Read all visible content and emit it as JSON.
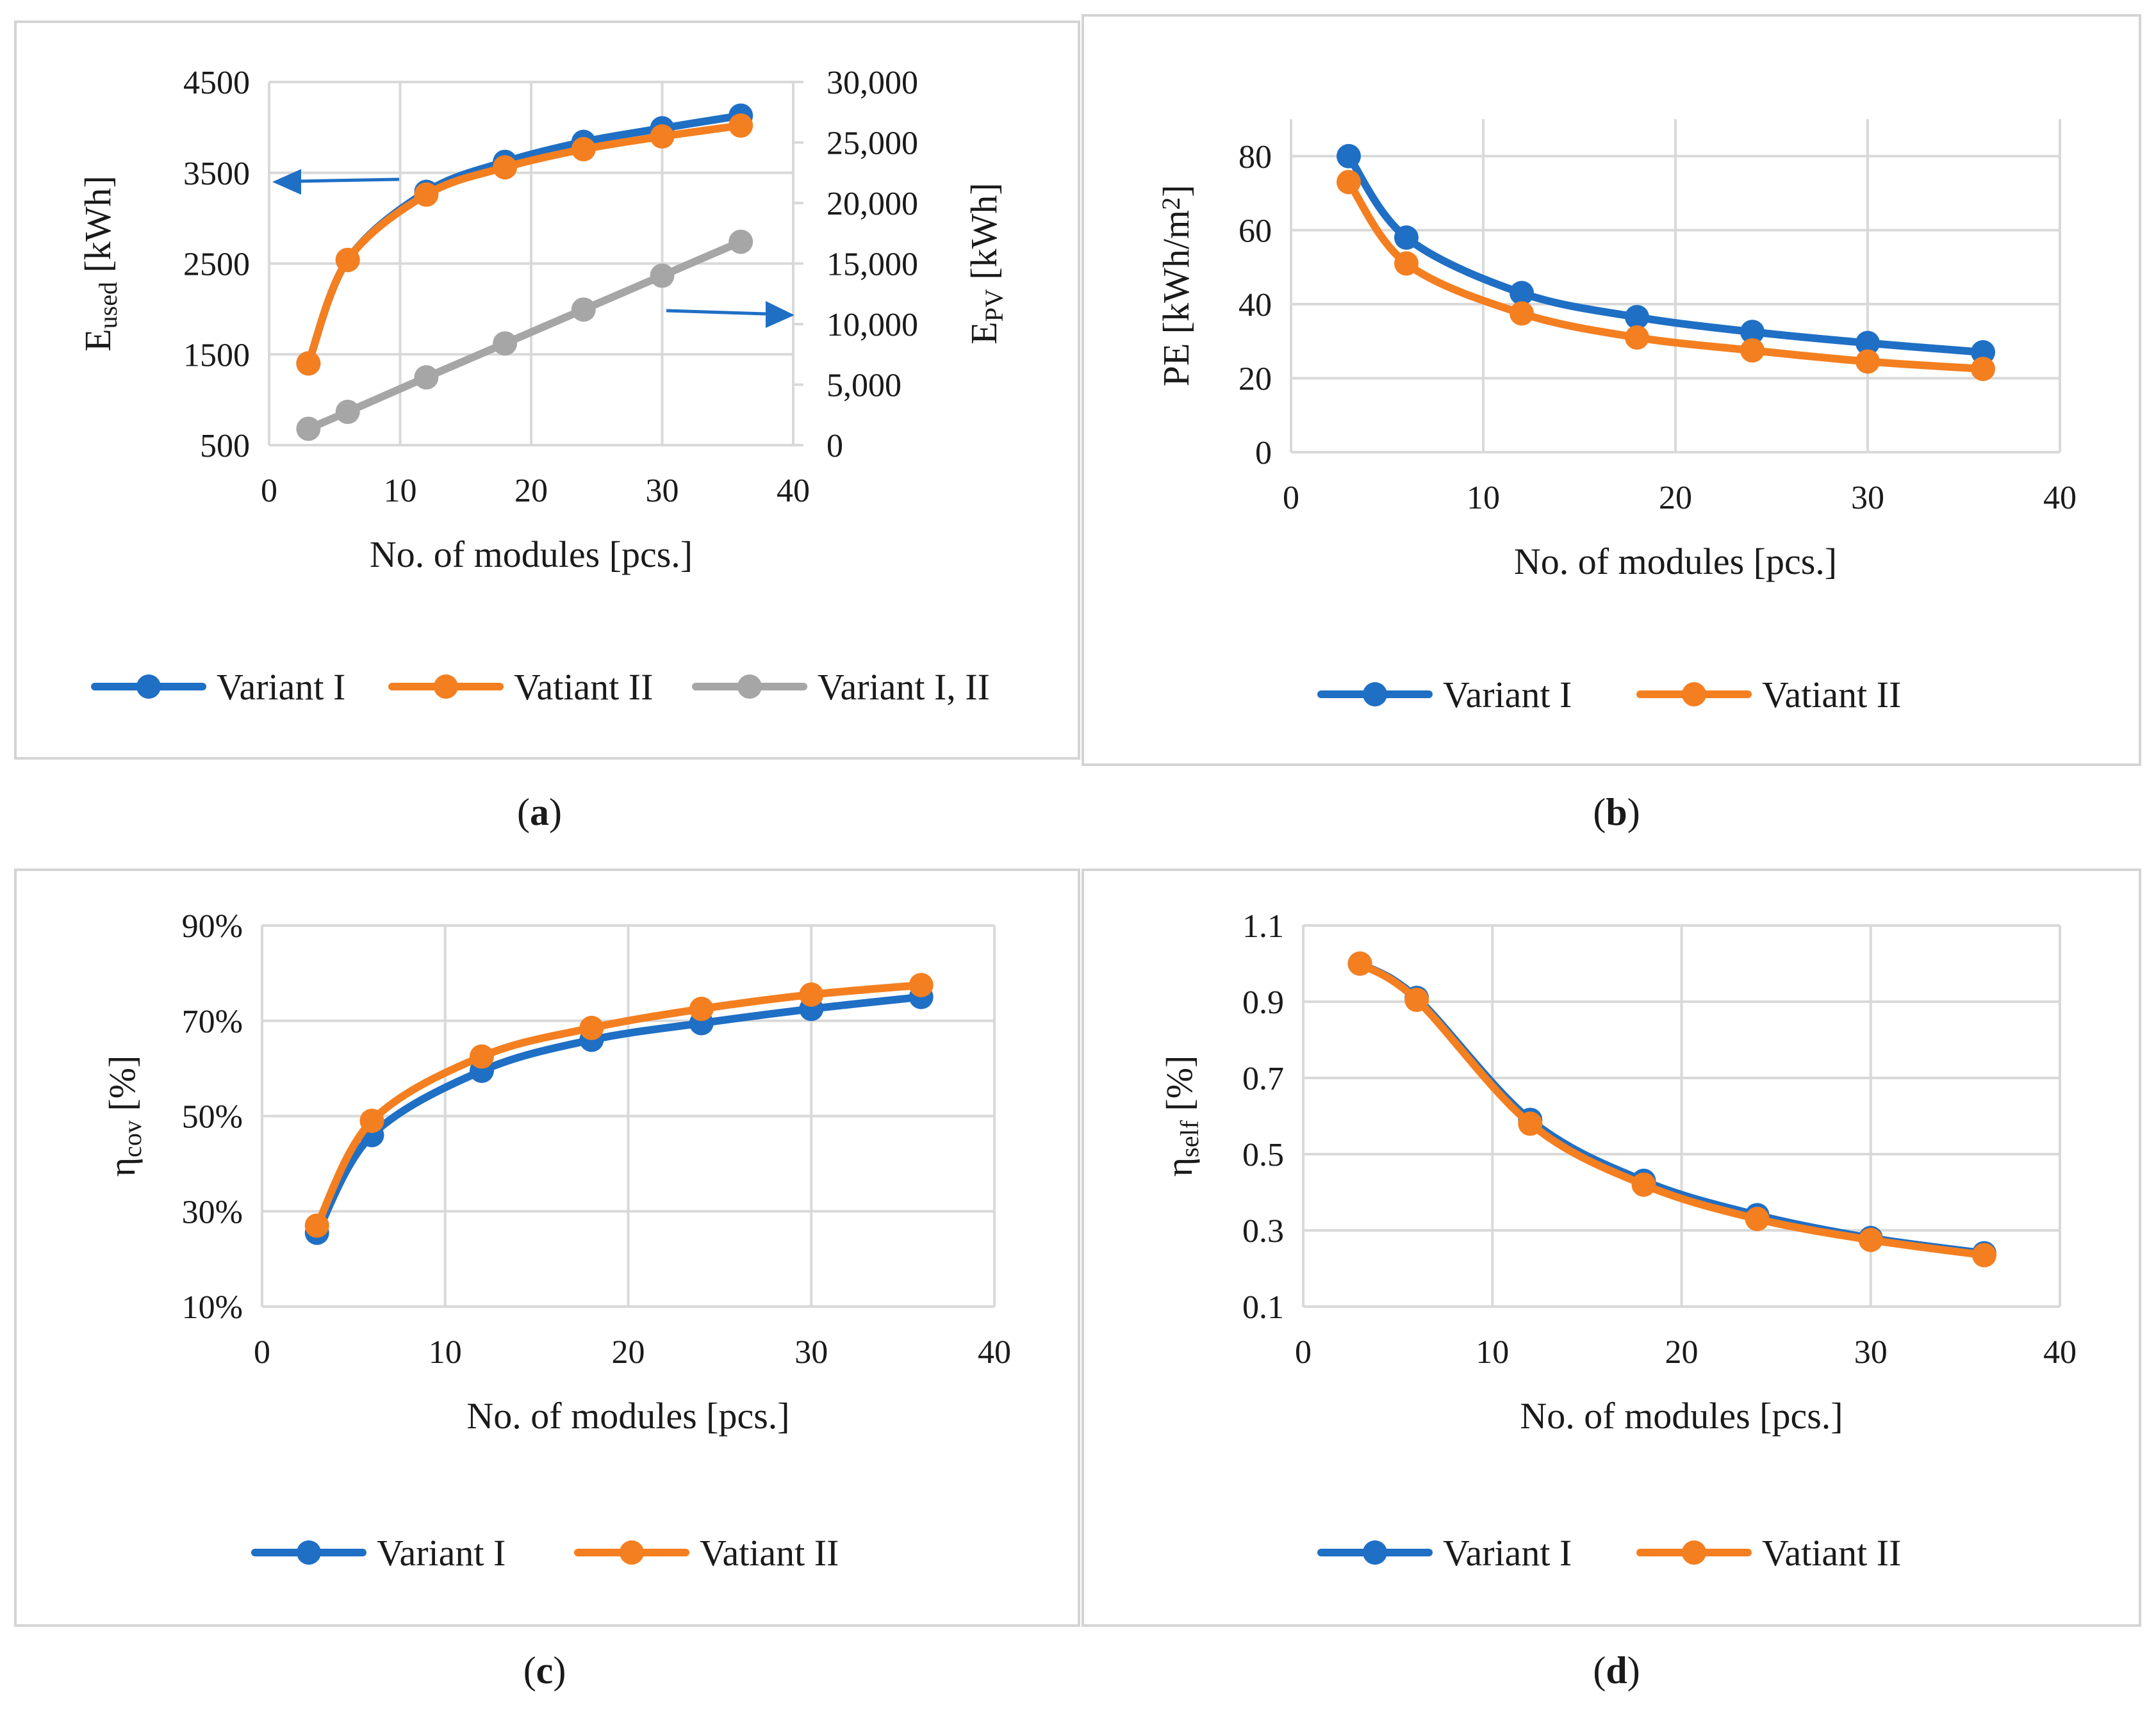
{
  "colors": {
    "variant_1": "#1f6fc5",
    "variant_2": "#f47f20",
    "variant_12": "#a6a6a6",
    "arrow": "#1f6fc5"
  },
  "chart_data": [
    {
      "id": "a",
      "type": "line",
      "caption_label": "a",
      "xlabel": "No. of modules [pcs.]",
      "ylabel_main": "E",
      "ylabel_sub": "used",
      "ylabel_unit": " [kWh]",
      "y2label_main": "E",
      "y2label_sub": "PV",
      "y2label_unit": " [kWh]",
      "xlim": [
        0,
        40
      ],
      "xticks": [
        0,
        10,
        20,
        30,
        40
      ],
      "ylim": [
        500,
        4500
      ],
      "yticks": [
        500,
        1500,
        2500,
        3500,
        4500
      ],
      "yticklabels": [
        "500",
        "1500",
        "2500",
        "3500",
        "4500"
      ],
      "y2lim": [
        0,
        30000
      ],
      "y2ticks": [
        0,
        5000,
        10000,
        15000,
        20000,
        25000,
        30000
      ],
      "y2ticklabels": [
        "0",
        "5,000",
        "10,000",
        "15,000",
        "20,000",
        "25,000",
        "30,000"
      ],
      "series": [
        {
          "name": "Variant I",
          "color": "#1f6fc5",
          "axis": "left",
          "x": [
            3,
            6,
            12,
            18,
            24,
            30,
            36
          ],
          "y": [
            1400,
            2540,
            3290,
            3620,
            3840,
            3990,
            4130
          ]
        },
        {
          "name": "Vatiant II",
          "color": "#f47f20",
          "axis": "left",
          "x": [
            3,
            6,
            12,
            18,
            24,
            30,
            36
          ],
          "y": [
            1400,
            2540,
            3260,
            3560,
            3760,
            3900,
            4020
          ]
        },
        {
          "name": "Variant I, II",
          "color": "#a6a6a6",
          "axis": "right",
          "x": [
            3,
            6,
            12,
            18,
            24,
            30,
            36
          ],
          "y": [
            1350,
            2750,
            5600,
            8400,
            11200,
            14000,
            16800
          ]
        }
      ],
      "annotations": [
        {
          "type": "arrow",
          "direction": "left",
          "meaning": "Variant curves use left axis"
        },
        {
          "type": "arrow",
          "direction": "right",
          "meaning": "Variant I, II curve uses right axis"
        }
      ]
    },
    {
      "id": "b",
      "type": "line",
      "caption_label": "b",
      "xlabel": "No. of modules [pcs.]",
      "ylabel_main": "PE [kWh/m",
      "ylabel_sup": "2",
      "ylabel_unit": "]",
      "xlim": [
        0,
        40
      ],
      "xticks": [
        0,
        10,
        20,
        30,
        40
      ],
      "ylim": [
        0,
        90
      ],
      "yticks": [
        0,
        20,
        40,
        60,
        80
      ],
      "yticklabels": [
        "0",
        "20",
        "40",
        "60",
        "80"
      ],
      "series": [
        {
          "name": "Variant I",
          "color": "#1f6fc5",
          "x": [
            3,
            6,
            12,
            18,
            24,
            30,
            36
          ],
          "y": [
            80,
            58,
            43,
            36.5,
            32.5,
            29.5,
            27
          ]
        },
        {
          "name": "Vatiant II",
          "color": "#f47f20",
          "x": [
            3,
            6,
            12,
            18,
            24,
            30,
            36
          ],
          "y": [
            73,
            51,
            37.5,
            31,
            27.5,
            24.5,
            22.5
          ]
        }
      ]
    },
    {
      "id": "c",
      "type": "line",
      "caption_label": "c",
      "xlabel": "No. of modules [pcs.]",
      "ylabel_main": "η",
      "ylabel_sub": "cov",
      "ylabel_unit": " [%]",
      "xlim": [
        0,
        40
      ],
      "xticks": [
        0,
        10,
        20,
        30,
        40
      ],
      "ylim": [
        10,
        90
      ],
      "yticks": [
        10,
        30,
        50,
        70,
        90
      ],
      "yticklabels": [
        "10%",
        "30%",
        "50%",
        "70%",
        "90%"
      ],
      "series": [
        {
          "name": "Variant I",
          "color": "#1f6fc5",
          "x": [
            3,
            6,
            12,
            18,
            24,
            30,
            36
          ],
          "y": [
            25.5,
            46,
            59.5,
            66,
            69.5,
            72.5,
            75
          ]
        },
        {
          "name": "Vatiant II",
          "color": "#f47f20",
          "x": [
            3,
            6,
            12,
            18,
            24,
            30,
            36
          ],
          "y": [
            27,
            49,
            62.5,
            68.5,
            72.5,
            75.5,
            77.5
          ]
        }
      ]
    },
    {
      "id": "d",
      "type": "line",
      "caption_label": "d",
      "xlabel": "No. of modules [pcs.]",
      "ylabel_main": "η",
      "ylabel_sub": "self",
      "ylabel_unit": " [%]",
      "xlim": [
        0,
        40
      ],
      "xticks": [
        0,
        10,
        20,
        30,
        40
      ],
      "ylim": [
        0.1,
        1.1
      ],
      "yticks": [
        0.1,
        0.3,
        0.5,
        0.7,
        0.9,
        1.1
      ],
      "yticklabels": [
        "0.1",
        "0.3",
        "0.5",
        "0.7",
        "0.9",
        "1.1"
      ],
      "series": [
        {
          "name": "Variant I",
          "color": "#1f6fc5",
          "x": [
            3,
            6,
            12,
            18,
            24,
            30,
            36
          ],
          "y": [
            1.0,
            0.91,
            0.59,
            0.43,
            0.34,
            0.28,
            0.24
          ]
        },
        {
          "name": "Vatiant II",
          "color": "#f47f20",
          "x": [
            3,
            6,
            12,
            18,
            24,
            30,
            36
          ],
          "y": [
            1.0,
            0.905,
            0.58,
            0.42,
            0.33,
            0.275,
            0.235
          ]
        }
      ]
    }
  ]
}
